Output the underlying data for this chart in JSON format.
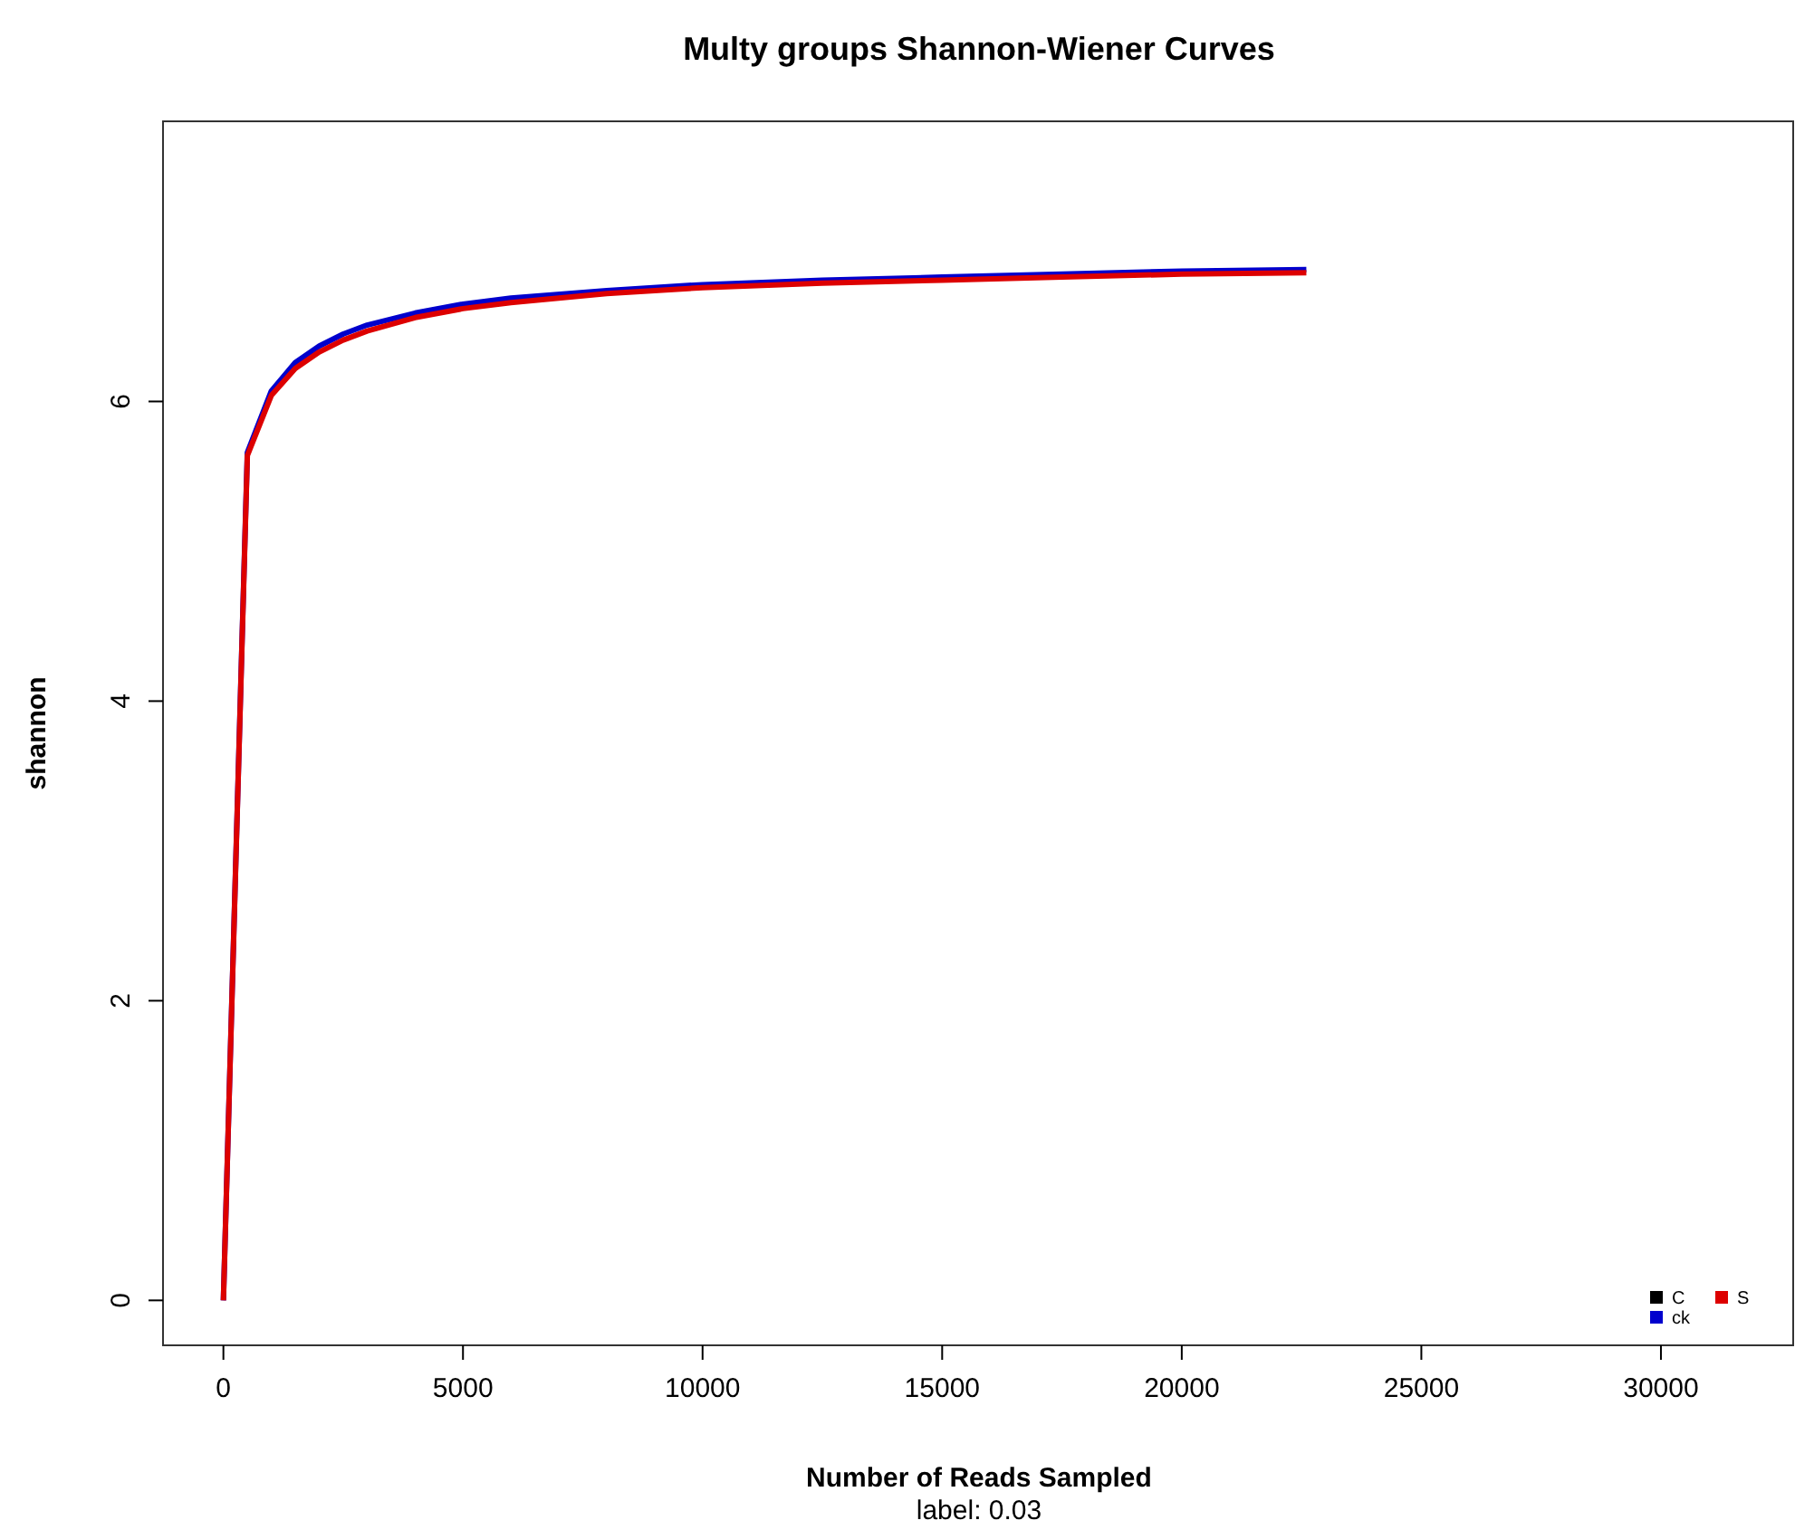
{
  "chart_data": {
    "type": "line",
    "title": "Multy groups Shannon-Wiener Curves",
    "xlabel": "Number of Reads Sampled",
    "ylabel": "shannon",
    "annotations": [
      "label: 0.03"
    ],
    "x": [
      0,
      500,
      1000,
      1500,
      2000,
      2500,
      3000,
      4000,
      5000,
      6000,
      8000,
      10000,
      12500,
      15000,
      17500,
      20000,
      22600
    ],
    "series": [
      {
        "name": "C",
        "color": "#000000",
        "values": [
          null,
          null,
          null,
          null,
          null,
          null,
          null,
          null,
          null,
          null,
          null,
          null,
          null,
          null,
          null,
          null,
          null
        ]
      },
      {
        "name": "ck",
        "color": "#0000cd",
        "values": [
          0,
          5.66,
          6.07,
          6.26,
          6.37,
          6.45,
          6.51,
          6.59,
          6.65,
          6.69,
          6.74,
          6.78,
          6.81,
          6.83,
          6.85,
          6.87,
          6.88
        ]
      },
      {
        "name": "S",
        "color": "#dd0000",
        "values": [
          0,
          5.64,
          6.04,
          6.22,
          6.33,
          6.41,
          6.47,
          6.56,
          6.62,
          6.66,
          6.72,
          6.76,
          6.79,
          6.81,
          6.83,
          6.85,
          6.86
        ]
      }
    ],
    "xlim": [
      -1260,
      32760
    ],
    "ylim": [
      -0.3,
      7.87
    ],
    "xticks": [
      0,
      5000,
      10000,
      15000,
      20000,
      25000,
      30000
    ],
    "yticks": [
      0,
      2,
      4,
      6
    ],
    "grid": false,
    "legend": "bottom right",
    "line_style": "solid",
    "marker": "none"
  }
}
